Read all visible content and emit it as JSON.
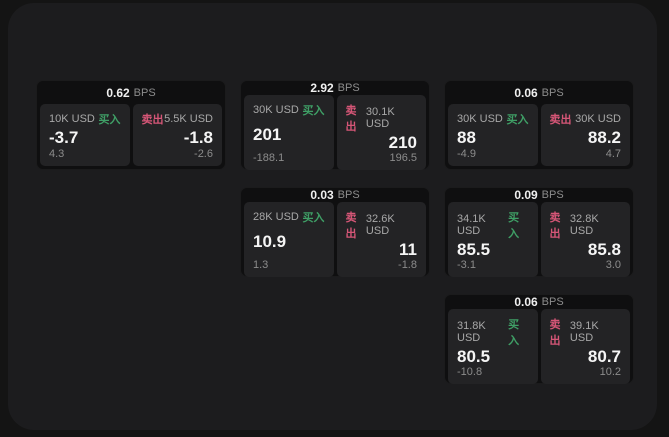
{
  "labels": {
    "bps_unit": "BPS",
    "buy": "买入",
    "sell": "卖出"
  },
  "colors": {
    "buy_green": "#3f9f66",
    "sell_red": "#d65677",
    "page_background": "#141414",
    "panel_background": "#1c1c1e",
    "card_background": "#0f0f10",
    "subpanel_background": "#232325"
  },
  "cards": [
    {
      "bps": "0.62",
      "buy": {
        "amount": "10K USD",
        "price": "-3.7",
        "delta": "4.3"
      },
      "sell": {
        "amount": "5.5K USD",
        "price": "-1.8",
        "delta": "-2.6"
      }
    },
    {
      "bps": "2.92",
      "buy": {
        "amount": "30K USD",
        "price": "201",
        "delta": "-188.1"
      },
      "sell": {
        "amount": "30.1K USD",
        "price": "210",
        "delta": "196.5"
      }
    },
    {
      "bps": "0.06",
      "buy": {
        "amount": "30K USD",
        "price": "88",
        "delta": "-4.9"
      },
      "sell": {
        "amount": "30K USD",
        "price": "88.2",
        "delta": "4.7"
      }
    },
    {
      "bps": "0.03",
      "buy": {
        "amount": "28K USD",
        "price": "10.9",
        "delta": "1.3"
      },
      "sell": {
        "amount": "32.6K USD",
        "price": "11",
        "delta": "-1.8"
      }
    },
    {
      "bps": "0.09",
      "buy": {
        "amount": "34.1K USD",
        "price": "85.5",
        "delta": "-3.1"
      },
      "sell": {
        "amount": "32.8K USD",
        "price": "85.8",
        "delta": "3.0"
      }
    },
    {
      "bps": "0.06",
      "buy": {
        "amount": "31.8K USD",
        "price": "80.5",
        "delta": "-10.8"
      },
      "sell": {
        "amount": "39.1K USD",
        "price": "80.7",
        "delta": "10.2"
      }
    }
  ]
}
